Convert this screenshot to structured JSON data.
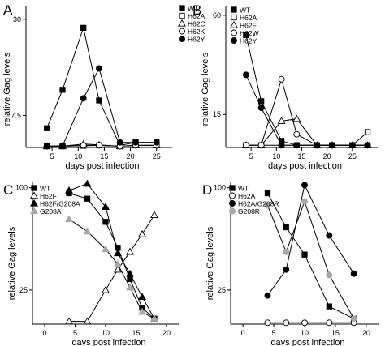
{
  "figure": {
    "panels": [
      {
        "letter": "A",
        "ylabel": "relative Gag levels",
        "xlabel": "days post infection",
        "xticks": [
          5,
          10,
          15,
          20,
          25
        ],
        "yticks": [
          7.5,
          30
        ],
        "ytick_labels": [
          "7.5",
          "30"
        ],
        "legend": [
          {
            "name": "WT",
            "marker": "filled-square"
          },
          {
            "name": "H62A",
            "marker": "open-square"
          },
          {
            "name": "H62C",
            "marker": "open-triangle"
          },
          {
            "name": "H62K",
            "marker": "open-circle"
          },
          {
            "name": "H62Y",
            "marker": "filled-circle"
          }
        ]
      },
      {
        "letter": "B",
        "ylabel": "relative Gag levels",
        "xlabel": "days post infection",
        "xticks": [
          5,
          10,
          15,
          20,
          25
        ],
        "yticks": [
          15,
          60
        ],
        "ytick_labels": [
          "15",
          "60"
        ],
        "legend": [
          {
            "name": "WT",
            "marker": "filled-square"
          },
          {
            "name": "H62A",
            "marker": "open-square"
          },
          {
            "name": "H62F",
            "marker": "open-triangle"
          },
          {
            "name": "H62W",
            "marker": "open-circle"
          },
          {
            "name": "H62Y",
            "marker": "filled-circle"
          }
        ]
      },
      {
        "letter": "C",
        "ylabel": "relative Gag levels",
        "xlabel": "days post infection",
        "xticks": [
          0,
          5,
          10,
          15,
          20
        ],
        "yticks": [
          25,
          100
        ],
        "ytick_labels": [
          "25",
          "100"
        ],
        "legend": [
          {
            "name": "WT",
            "marker": "filled-square"
          },
          {
            "name": "H62F",
            "marker": "open-triangle"
          },
          {
            "name": "H62F/G208A",
            "marker": "filled-triangle"
          },
          {
            "name": "G208A",
            "marker": "gray-triangle"
          }
        ]
      },
      {
        "letter": "D",
        "ylabel": "relative Gag levels",
        "xlabel": "days post infection",
        "xticks": [
          0,
          5,
          10,
          15,
          20
        ],
        "yticks": [
          25,
          100
        ],
        "ytick_labels": [
          "25",
          "100"
        ],
        "legend": [
          {
            "name": "WT",
            "marker": "filled-square"
          },
          {
            "name": "H62A",
            "marker": "open-circle"
          },
          {
            "name": "H62A/G208R",
            "marker": "filled-circle"
          },
          {
            "name": "G208R",
            "marker": "gray-circle"
          }
        ]
      }
    ]
  },
  "chart_data": [
    {
      "type": "line",
      "panel": "A",
      "xlabel": "days post infection",
      "ylabel": "relative Gag levels",
      "xlim": [
        0,
        28
      ],
      "ylim": [
        0,
        33
      ],
      "series": [
        {
          "name": "WT",
          "marker": "filled-square",
          "x": [
            4,
            7,
            11,
            14,
            18,
            21,
            25
          ],
          "y": [
            4.5,
            13.5,
            28,
            11,
            0.5,
            1.2,
            1.2
          ]
        },
        {
          "name": "H62A",
          "marker": "open-square",
          "x": [
            4,
            7,
            11,
            14,
            18,
            21,
            25
          ],
          "y": [
            0.3,
            0.3,
            0.4,
            0.5,
            0.3,
            0.5,
            0.5
          ]
        },
        {
          "name": "H62C",
          "marker": "open-triangle",
          "x": [
            4,
            7,
            11,
            14,
            18,
            21,
            25
          ],
          "y": [
            0.3,
            0.3,
            0.8,
            0.6,
            0.3,
            0.5,
            0.5
          ]
        },
        {
          "name": "H62K",
          "marker": "open-circle",
          "x": [
            4,
            7,
            11,
            14,
            18,
            21,
            25
          ],
          "y": [
            0.3,
            0.3,
            0.5,
            0.5,
            0.3,
            0.5,
            0.5
          ]
        },
        {
          "name": "H62Y",
          "marker": "filled-circle",
          "x": [
            4,
            7,
            11,
            14,
            18,
            21,
            25
          ],
          "y": [
            0.3,
            0.4,
            11.5,
            18.5,
            1.2,
            1.2,
            1.2
          ]
        }
      ]
    },
    {
      "type": "line",
      "panel": "B",
      "xlabel": "days post infection",
      "ylabel": "relative Gag levels",
      "xlim": [
        0,
        30
      ],
      "ylim": [
        0,
        64
      ],
      "series": [
        {
          "name": "WT",
          "marker": "filled-square",
          "x": [
            4,
            7,
            11,
            14,
            18,
            21,
            25,
            28
          ],
          "y": [
            51,
            21,
            3,
            1,
            1,
            1,
            1,
            1
          ]
        },
        {
          "name": "H62A",
          "marker": "open-square",
          "x": [
            4,
            7,
            11,
            14,
            18,
            21,
            25,
            28
          ],
          "y": [
            1,
            1,
            1,
            1,
            1,
            1,
            1,
            7
          ]
        },
        {
          "name": "H62F",
          "marker": "open-triangle",
          "x": [
            4,
            7,
            11,
            14,
            18,
            21,
            25,
            28
          ],
          "y": [
            1,
            1,
            12,
            13,
            1,
            1,
            1,
            1
          ]
        },
        {
          "name": "H62W",
          "marker": "open-circle",
          "x": [
            4,
            7,
            11,
            14,
            18,
            21,
            25,
            28
          ],
          "y": [
            1,
            1,
            31,
            6,
            1,
            1,
            1,
            1
          ]
        },
        {
          "name": "H62Y",
          "marker": "filled-circle",
          "x": [
            4,
            7,
            11,
            14,
            18,
            21,
            25,
            28
          ],
          "y": [
            33,
            18,
            1,
            1,
            1,
            1,
            1,
            1
          ]
        }
      ]
    },
    {
      "type": "line",
      "panel": "C",
      "xlabel": "days post infection",
      "ylabel": "relative Gag levels",
      "xlim": [
        -2,
        22
      ],
      "ylim": [
        0,
        104
      ],
      "series": [
        {
          "name": "WT",
          "marker": "filled-square",
          "x": [
            4,
            7,
            10,
            12,
            14,
            16,
            18
          ],
          "y": [
            96,
            92,
            75,
            56,
            33,
            12,
            4
          ]
        },
        {
          "name": "H62F",
          "marker": "open-triangle",
          "x": [
            4,
            7,
            10,
            12,
            14,
            16,
            18
          ],
          "y": [
            2,
            2,
            25,
            40,
            53,
            66,
            80
          ]
        },
        {
          "name": "H62F/G208A",
          "marker": "filled-triangle",
          "x": [
            4,
            7,
            10,
            12,
            14,
            16,
            18
          ],
          "y": [
            98,
            103,
            86,
            52,
            37,
            20,
            4
          ]
        },
        {
          "name": "G208A",
          "marker": "gray-triangle",
          "x": [
            4,
            7,
            10,
            12,
            14,
            16,
            18
          ],
          "y": [
            77,
            68,
            55,
            44,
            27,
            9,
            4
          ]
        }
      ]
    },
    {
      "type": "line",
      "panel": "D",
      "xlabel": "days post infection",
      "ylabel": "relative Gag levels",
      "xlim": [
        -2,
        22
      ],
      "ylim": [
        0,
        104
      ],
      "series": [
        {
          "name": "WT",
          "marker": "filled-square",
          "x": [
            4,
            7,
            10,
            14,
            18
          ],
          "y": [
            96,
            71,
            51,
            13,
            4
          ]
        },
        {
          "name": "H62A",
          "marker": "open-circle",
          "x": [
            4,
            7,
            10,
            14,
            18
          ],
          "y": [
            1,
            1,
            1,
            1,
            1
          ]
        },
        {
          "name": "H62A/G208R",
          "marker": "filled-circle",
          "x": [
            4,
            7,
            10,
            14,
            18
          ],
          "y": [
            21,
            40,
            102,
            65,
            37
          ]
        },
        {
          "name": "G208R",
          "marker": "gray-circle",
          "x": [
            4,
            7,
            10,
            14,
            18
          ],
          "y": [
            87,
            53,
            90,
            36,
            4
          ]
        }
      ]
    }
  ]
}
